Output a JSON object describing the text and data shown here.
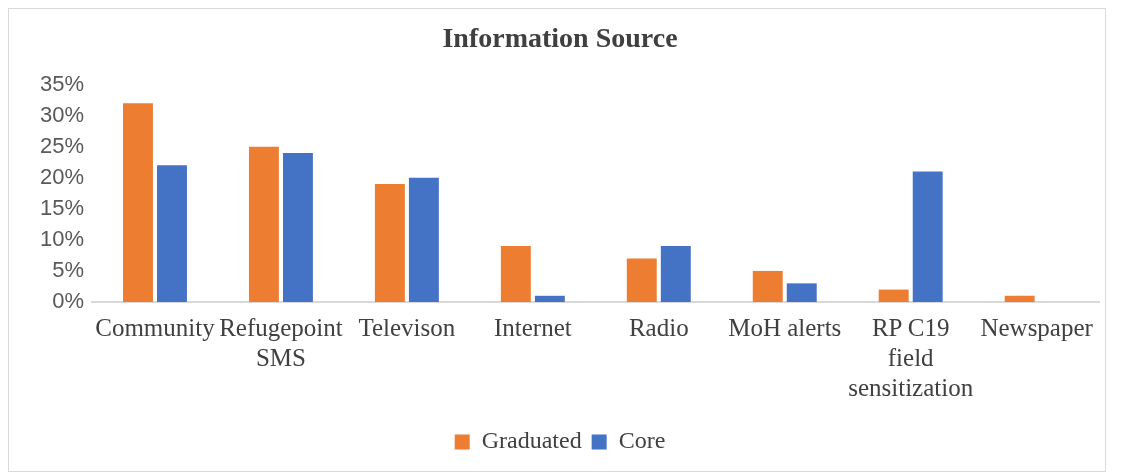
{
  "chart_data": {
    "type": "bar",
    "title": "Information Source",
    "categories": [
      "Community",
      "Refugepoint SMS",
      "Televison",
      "Internet",
      "Radio",
      "MoH alerts",
      "RP C19 field sensitization",
      "Newspaper"
    ],
    "series": [
      {
        "name": "Graduated",
        "color": "#ed7d31",
        "values": [
          32,
          25,
          19,
          9,
          7,
          5,
          2,
          1
        ]
      },
      {
        "name": "Core",
        "color": "#4472c4",
        "values": [
          22,
          24,
          20,
          1,
          9,
          3,
          21,
          0
        ]
      }
    ],
    "ylim": [
      0,
      35
    ],
    "yticks": [
      {
        "value": 0,
        "label": "0%"
      },
      {
        "value": 5,
        "label": "5%"
      },
      {
        "value": 10,
        "label": "10%"
      },
      {
        "value": 15,
        "label": "15%"
      },
      {
        "value": 20,
        "label": "20%"
      },
      {
        "value": 25,
        "label": "25%"
      },
      {
        "value": 30,
        "label": "30%"
      },
      {
        "value": 35,
        "label": "35%"
      }
    ],
    "grid": false,
    "legend": "bottom"
  }
}
